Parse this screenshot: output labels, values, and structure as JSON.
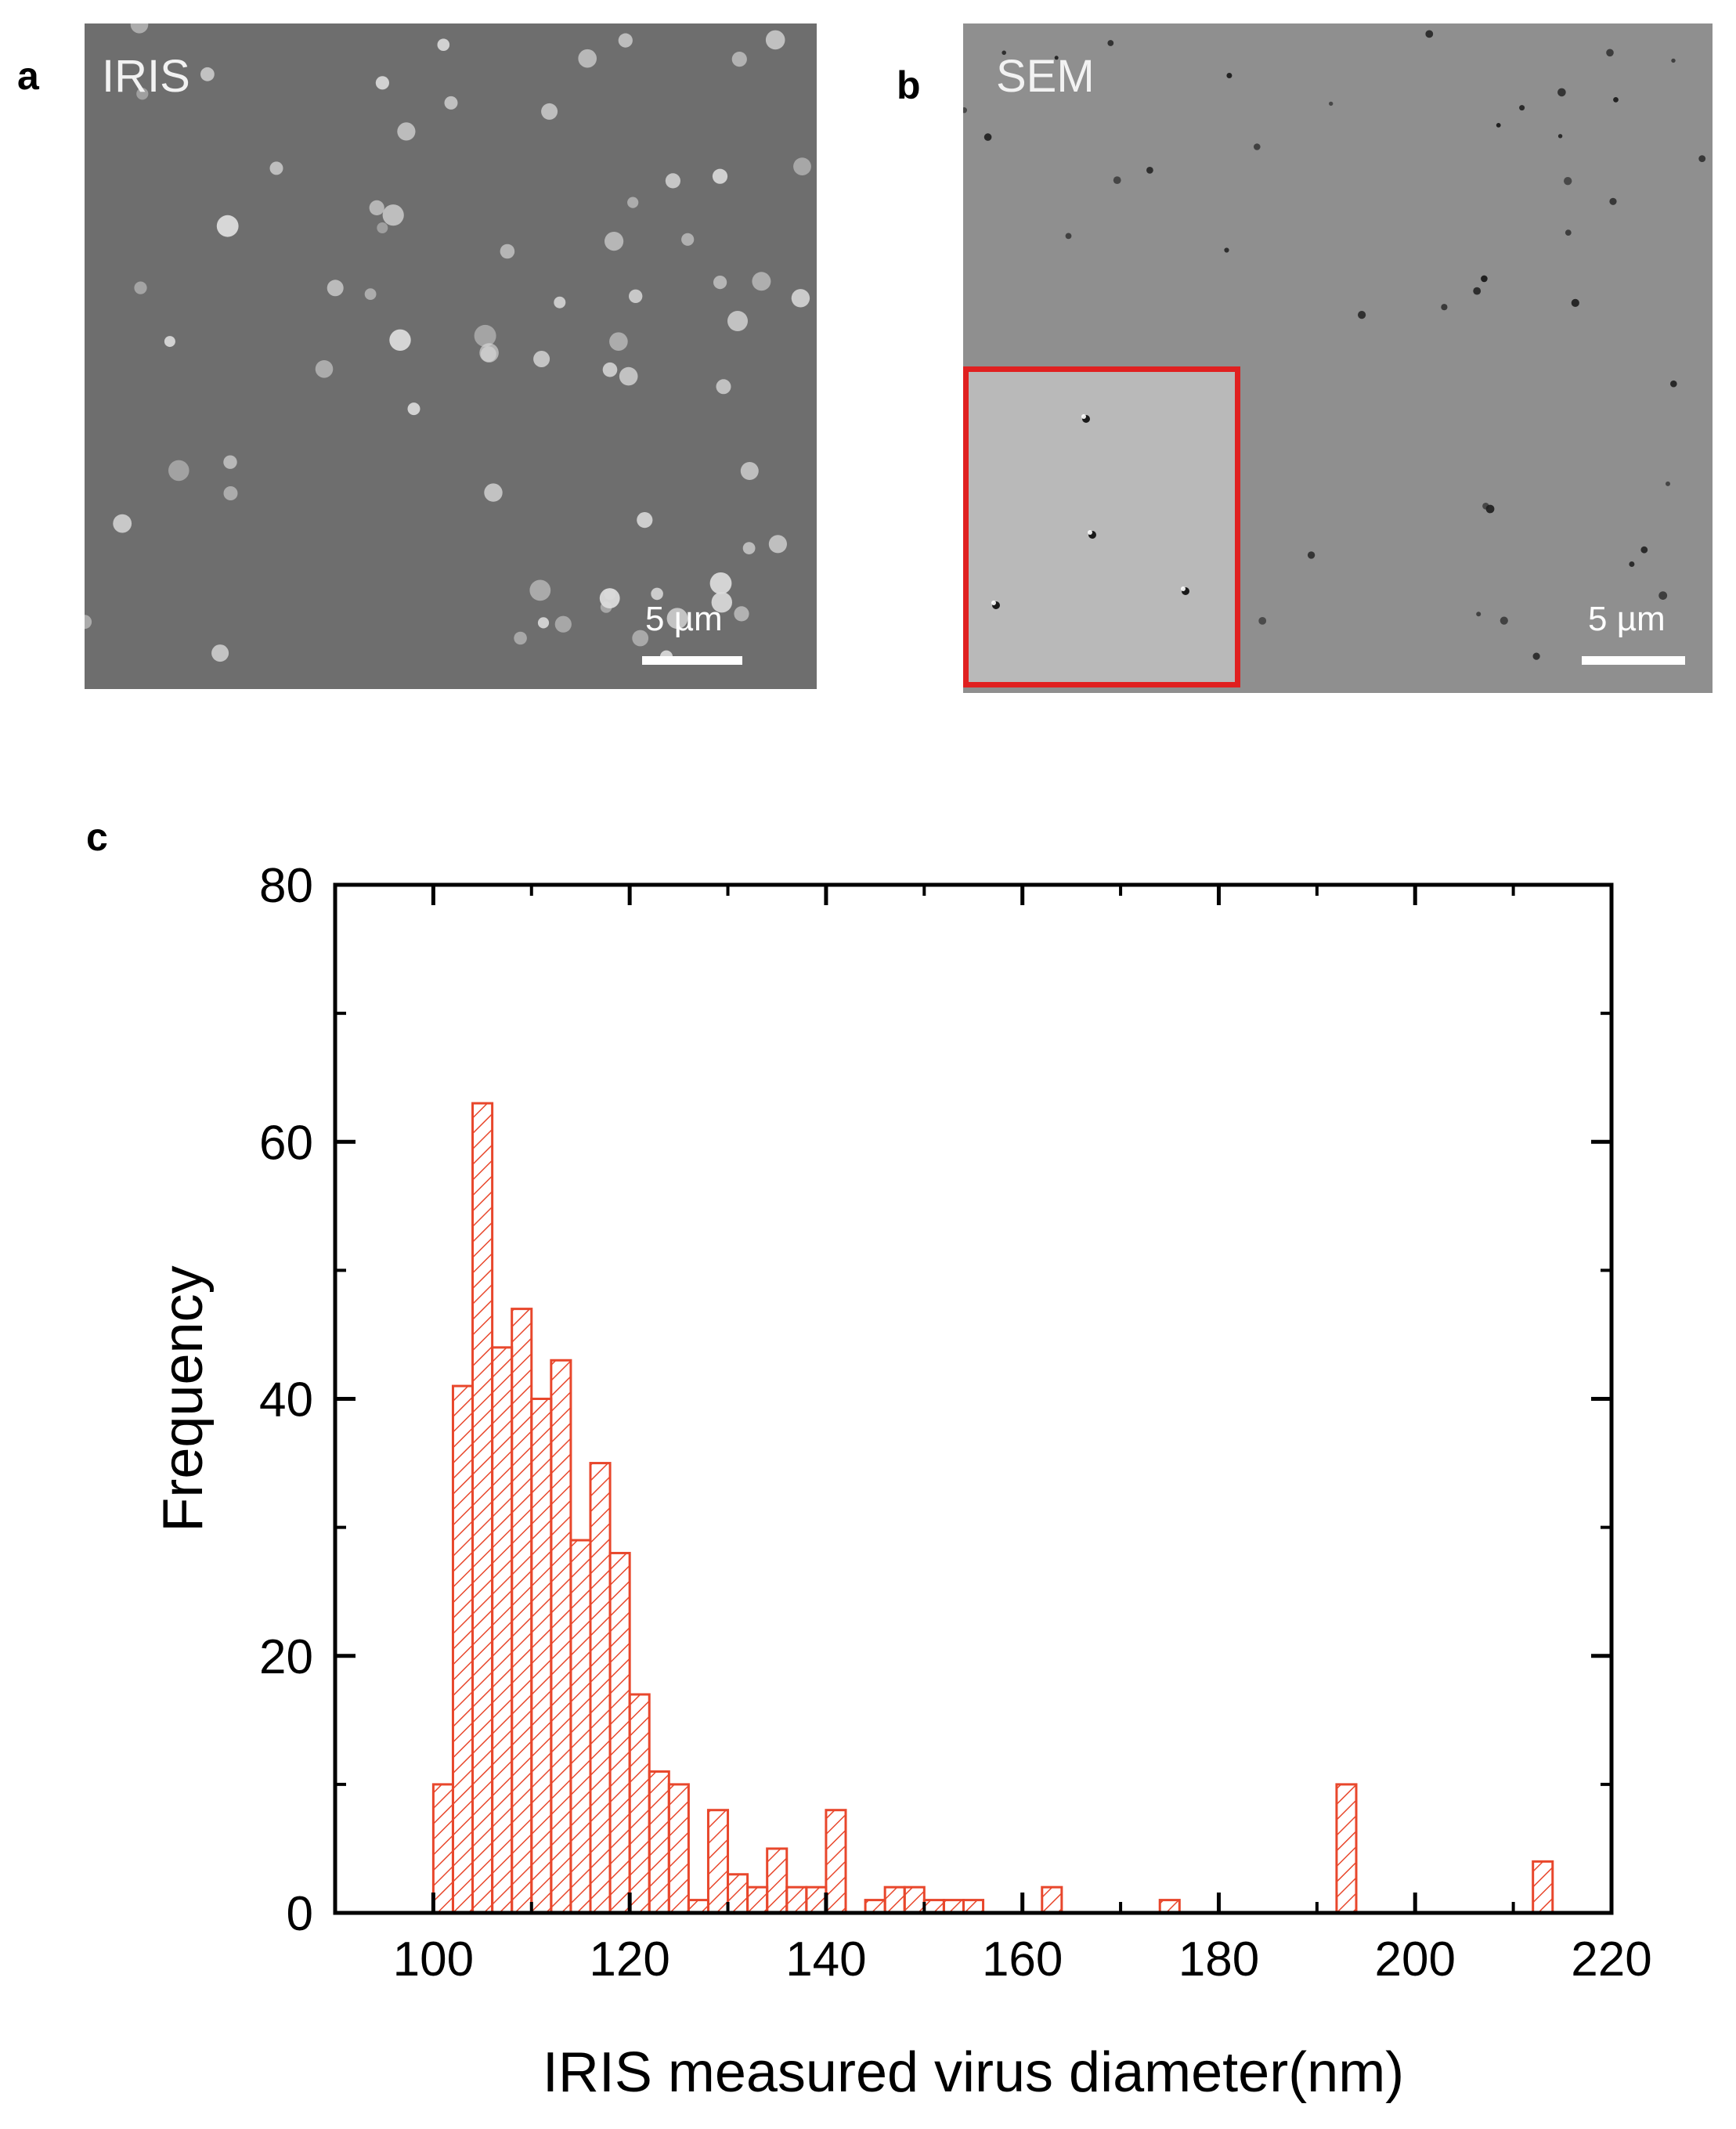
{
  "panels": {
    "a": {
      "letter": "a",
      "label": "IRIS",
      "scalebar": "5 µm"
    },
    "b": {
      "letter": "b",
      "label": "SEM",
      "scalebar": "5 µm"
    },
    "c": {
      "letter": "c"
    }
  },
  "colors": {
    "bar": "#e8472c",
    "inset_border": "#e02020",
    "iris_bg": "#6e6e6e",
    "sem_bg": "#8f8f8f",
    "inset_bg": "#b9b9b9"
  },
  "chart_data": {
    "type": "bar",
    "style": "histogram, hatched bars, outline only",
    "title": "",
    "xlabel": "IRIS measured virus diameter(nm)",
    "ylabel": "Frequency",
    "xlim": [
      90,
      220
    ],
    "ylim": [
      0,
      80
    ],
    "xticks": [
      100,
      120,
      140,
      160,
      180,
      200,
      220
    ],
    "yticks": [
      0,
      20,
      40,
      60,
      80
    ],
    "grid": false,
    "legend": "none",
    "bin_width": 2,
    "x": [
      101,
      103,
      105,
      107,
      109,
      111,
      113,
      115,
      117,
      119,
      121,
      123,
      125,
      127,
      129,
      131,
      133,
      135,
      137,
      139,
      141,
      143,
      145,
      147,
      149,
      151,
      153,
      155,
      157,
      159,
      161,
      163,
      165,
      167,
      169,
      171,
      173,
      175,
      177,
      179,
      181,
      183,
      185,
      187,
      189,
      191,
      193,
      195,
      197,
      199,
      201,
      203,
      205,
      207,
      209,
      211,
      213
    ],
    "values": [
      10,
      41,
      63,
      44,
      47,
      40,
      43,
      29,
      35,
      28,
      17,
      11,
      10,
      1,
      8,
      3,
      2,
      5,
      2,
      2,
      8,
      0,
      1,
      2,
      2,
      1,
      1,
      1,
      0,
      0,
      0,
      2,
      0,
      0,
      0,
      0,
      0,
      1,
      0,
      0,
      0,
      0,
      0,
      0,
      0,
      0,
      10,
      0,
      0,
      0,
      0,
      0,
      0,
      0,
      0,
      0,
      4
    ]
  }
}
